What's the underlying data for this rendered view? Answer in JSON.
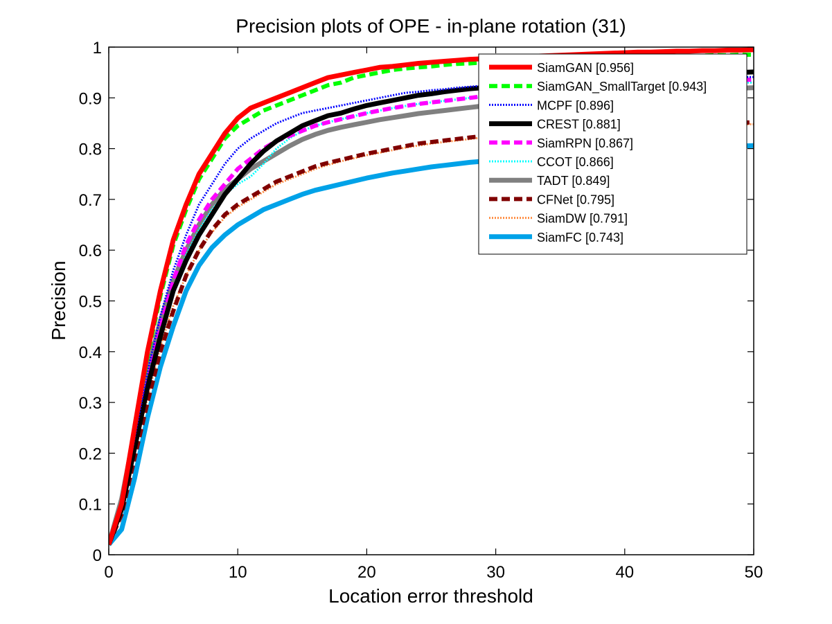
{
  "chart_data": {
    "type": "line",
    "title": "Precision plots of OPE - in-plane rotation (31)",
    "xlabel": "Location error threshold",
    "ylabel": "Precision",
    "xlim": [
      0,
      50
    ],
    "ylim": [
      0,
      1
    ],
    "x_ticks": [
      0,
      10,
      20,
      30,
      40,
      50
    ],
    "y_ticks": [
      0,
      0.1,
      0.2,
      0.3,
      0.4,
      0.5,
      0.6,
      0.7,
      0.8,
      0.9,
      1
    ],
    "x_tick_labels": [
      "0",
      "10",
      "20",
      "30",
      "40",
      "50"
    ],
    "y_tick_labels": [
      "0",
      "0.1",
      "0.2",
      "0.3",
      "0.4",
      "0.5",
      "0.6",
      "0.7",
      "0.8",
      "0.9",
      "1"
    ],
    "grid": false,
    "legend_position": "top-right",
    "x": [
      0,
      1,
      2,
      3,
      4,
      5,
      6,
      7,
      8,
      9,
      10,
      11,
      12,
      13,
      14,
      15,
      16,
      17,
      18,
      19,
      20,
      21,
      22,
      23,
      24,
      25,
      26,
      27,
      28,
      29,
      30,
      31,
      32,
      33,
      34,
      35,
      36,
      37,
      38,
      39,
      40,
      41,
      42,
      43,
      44,
      45,
      46,
      47,
      48,
      49,
      50
    ],
    "series": [
      {
        "name": "SiamGAN [0.956]",
        "color": "#ff0000",
        "style": "solid",
        "width": 7,
        "values": [
          0.02,
          0.1,
          0.25,
          0.4,
          0.52,
          0.62,
          0.69,
          0.75,
          0.79,
          0.83,
          0.86,
          0.88,
          0.89,
          0.9,
          0.91,
          0.92,
          0.93,
          0.94,
          0.945,
          0.95,
          0.955,
          0.96,
          0.962,
          0.965,
          0.968,
          0.97,
          0.972,
          0.974,
          0.976,
          0.977,
          0.978,
          0.98,
          0.981,
          0.982,
          0.983,
          0.984,
          0.985,
          0.986,
          0.987,
          0.988,
          0.989,
          0.99,
          0.99,
          0.991,
          0.992,
          0.992,
          0.993,
          0.993,
          0.994,
          0.994,
          0.995
        ]
      },
      {
        "name": "SiamGAN_SmallTarget [0.943]",
        "color": "#00ff00",
        "style": "dashed",
        "width": 6,
        "values": [
          0.02,
          0.1,
          0.25,
          0.39,
          0.51,
          0.61,
          0.68,
          0.74,
          0.78,
          0.82,
          0.845,
          0.86,
          0.875,
          0.885,
          0.895,
          0.905,
          0.915,
          0.925,
          0.93,
          0.94,
          0.945,
          0.95,
          0.955,
          0.958,
          0.96,
          0.962,
          0.965,
          0.967,
          0.968,
          0.97,
          0.971,
          0.972,
          0.973,
          0.974,
          0.975,
          0.976,
          0.977,
          0.978,
          0.979,
          0.98,
          0.98,
          0.981,
          0.981,
          0.982,
          0.982,
          0.983,
          0.983,
          0.984,
          0.984,
          0.985,
          0.985
        ]
      },
      {
        "name": "MCPF [0.896]",
        "color": "#0000ff",
        "style": "dotted",
        "width": 3,
        "values": [
          0.02,
          0.1,
          0.23,
          0.36,
          0.47,
          0.56,
          0.63,
          0.69,
          0.73,
          0.77,
          0.8,
          0.82,
          0.835,
          0.85,
          0.86,
          0.87,
          0.875,
          0.88,
          0.885,
          0.89,
          0.895,
          0.9,
          0.905,
          0.91,
          0.912,
          0.915,
          0.917,
          0.92,
          0.922,
          0.924,
          0.925,
          0.927,
          0.928,
          0.929,
          0.93,
          0.931,
          0.932,
          0.933,
          0.934,
          0.935,
          0.936,
          0.937,
          0.937,
          0.938,
          0.938,
          0.939,
          0.939,
          0.94,
          0.94,
          0.941,
          0.941
        ]
      },
      {
        "name": "CREST [0.881]",
        "color": "#000000",
        "style": "solid",
        "width": 7,
        "values": [
          0.02,
          0.09,
          0.21,
          0.33,
          0.43,
          0.52,
          0.58,
          0.63,
          0.67,
          0.71,
          0.74,
          0.77,
          0.795,
          0.815,
          0.83,
          0.845,
          0.855,
          0.865,
          0.87,
          0.878,
          0.885,
          0.89,
          0.895,
          0.9,
          0.905,
          0.908,
          0.912,
          0.915,
          0.918,
          0.92,
          0.922,
          0.925,
          0.927,
          0.929,
          0.93,
          0.932,
          0.934,
          0.935,
          0.937,
          0.938,
          0.94,
          0.941,
          0.942,
          0.944,
          0.945,
          0.946,
          0.947,
          0.948,
          0.949,
          0.95,
          0.951
        ]
      },
      {
        "name": "SiamRPN [0.867]",
        "color": "#ff00ff",
        "style": "dashed",
        "width": 6,
        "values": [
          0.02,
          0.1,
          0.22,
          0.34,
          0.45,
          0.54,
          0.61,
          0.66,
          0.7,
          0.73,
          0.76,
          0.78,
          0.8,
          0.815,
          0.825,
          0.835,
          0.845,
          0.852,
          0.858,
          0.864,
          0.87,
          0.875,
          0.88,
          0.884,
          0.888,
          0.891,
          0.894,
          0.897,
          0.9,
          0.903,
          0.905,
          0.908,
          0.91,
          0.912,
          0.914,
          0.916,
          0.918,
          0.92,
          0.922,
          0.923,
          0.925,
          0.926,
          0.927,
          0.929,
          0.93,
          0.931,
          0.932,
          0.933,
          0.934,
          0.935,
          0.936
        ]
      },
      {
        "name": "CCOT [0.866]",
        "color": "#00ffff",
        "style": "dotted",
        "width": 3,
        "values": [
          0.02,
          0.09,
          0.21,
          0.33,
          0.43,
          0.52,
          0.59,
          0.64,
          0.68,
          0.71,
          0.73,
          0.745,
          0.77,
          0.8,
          0.82,
          0.835,
          0.845,
          0.852,
          0.858,
          0.864,
          0.87,
          0.875,
          0.88,
          0.884,
          0.888,
          0.891,
          0.894,
          0.897,
          0.9,
          0.902,
          0.904,
          0.906,
          0.908,
          0.91,
          0.912,
          0.914,
          0.915,
          0.917,
          0.918,
          0.92,
          0.921,
          0.922,
          0.923,
          0.924,
          0.925,
          0.926,
          0.927,
          0.928,
          0.929,
          0.93,
          0.93
        ]
      },
      {
        "name": "TADT [0.849]",
        "color": "#808080",
        "style": "solid",
        "width": 7,
        "values": [
          0.02,
          0.11,
          0.24,
          0.36,
          0.46,
          0.54,
          0.6,
          0.65,
          0.69,
          0.72,
          0.74,
          0.76,
          0.775,
          0.79,
          0.805,
          0.818,
          0.828,
          0.836,
          0.842,
          0.847,
          0.852,
          0.857,
          0.861,
          0.865,
          0.869,
          0.872,
          0.875,
          0.878,
          0.881,
          0.884,
          0.886,
          0.889,
          0.891,
          0.893,
          0.895,
          0.897,
          0.899,
          0.901,
          0.903,
          0.905,
          0.906,
          0.908,
          0.909,
          0.911,
          0.912,
          0.914,
          0.915,
          0.916,
          0.918,
          0.919,
          0.92
        ]
      },
      {
        "name": "CFNet [0.795]",
        "color": "#800000",
        "style": "dashed",
        "width": 6,
        "values": [
          0.02,
          0.08,
          0.19,
          0.3,
          0.4,
          0.48,
          0.55,
          0.6,
          0.64,
          0.67,
          0.69,
          0.705,
          0.72,
          0.735,
          0.745,
          0.755,
          0.765,
          0.772,
          0.778,
          0.784,
          0.79,
          0.795,
          0.8,
          0.805,
          0.81,
          0.813,
          0.816,
          0.819,
          0.822,
          0.825,
          0.827,
          0.829,
          0.831,
          0.833,
          0.835,
          0.837,
          0.838,
          0.839,
          0.84,
          0.841,
          0.842,
          0.843,
          0.844,
          0.845,
          0.846,
          0.847,
          0.848,
          0.849,
          0.85,
          0.851,
          0.852
        ]
      },
      {
        "name": "SiamDW [0.791]",
        "color": "#ff8c40",
        "style": "dotted",
        "width": 3,
        "values": [
          0.02,
          0.09,
          0.2,
          0.31,
          0.41,
          0.49,
          0.55,
          0.6,
          0.635,
          0.665,
          0.685,
          0.7,
          0.715,
          0.73,
          0.74,
          0.75,
          0.76,
          0.768,
          0.775,
          0.781,
          0.787,
          0.792,
          0.797,
          0.802,
          0.806,
          0.81,
          0.813,
          0.816,
          0.819,
          0.822,
          0.824,
          0.826,
          0.828,
          0.83,
          0.832,
          0.834,
          0.835,
          0.836,
          0.837,
          0.838,
          0.839,
          0.84,
          0.841,
          0.842,
          0.843,
          0.844,
          0.845,
          0.846,
          0.847,
          0.848,
          0.848
        ]
      },
      {
        "name": "SiamFC [0.743]",
        "color": "#00a2e8",
        "style": "solid",
        "width": 7,
        "values": [
          0.02,
          0.05,
          0.15,
          0.27,
          0.37,
          0.45,
          0.52,
          0.57,
          0.605,
          0.63,
          0.65,
          0.665,
          0.68,
          0.69,
          0.7,
          0.71,
          0.718,
          0.724,
          0.73,
          0.736,
          0.742,
          0.747,
          0.752,
          0.756,
          0.76,
          0.764,
          0.767,
          0.77,
          0.773,
          0.775,
          0.777,
          0.779,
          0.781,
          0.783,
          0.785,
          0.787,
          0.789,
          0.79,
          0.792,
          0.793,
          0.795,
          0.796,
          0.797,
          0.798,
          0.8,
          0.801,
          0.802,
          0.803,
          0.804,
          0.805,
          0.806
        ]
      }
    ]
  }
}
